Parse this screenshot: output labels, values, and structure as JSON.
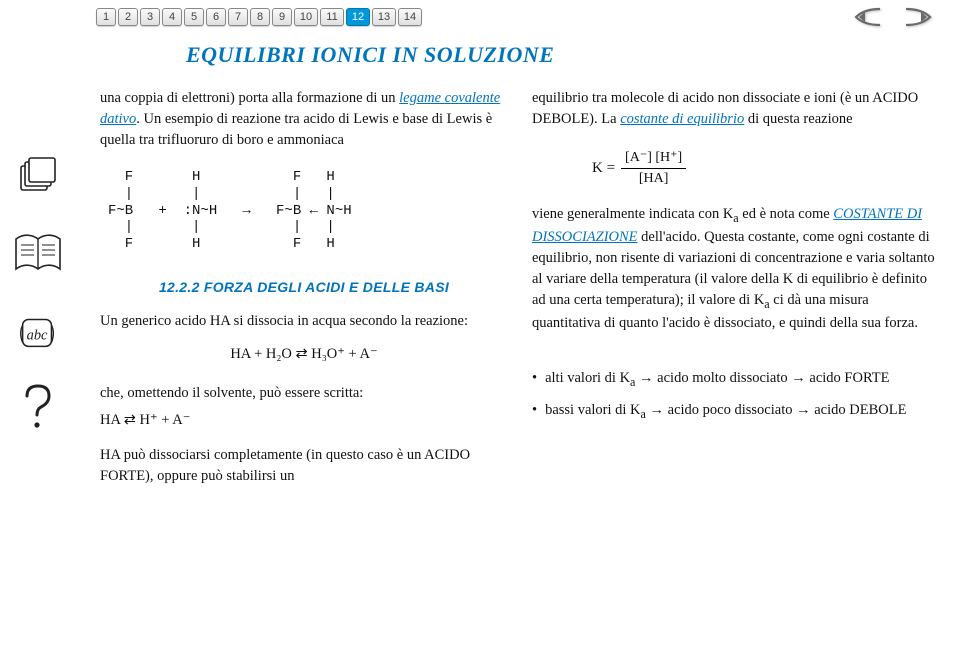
{
  "title": {
    "text": "EQUILIBRI IONICI IN SOLUZIONE",
    "fontsize": 22,
    "color": "#0074bd"
  },
  "pages": {
    "list": [
      "1",
      "2",
      "3",
      "4",
      "5",
      "6",
      "7",
      "8",
      "9",
      "10",
      "11",
      "12",
      "13",
      "14"
    ],
    "active": 12
  },
  "colors": {
    "brand_blue": "#0074bd",
    "page_active": "#0098d8",
    "text": "#111111",
    "arrow": "#5a5a5a"
  },
  "left": {
    "p1a": "una coppia di elettroni) porta alla formazione di un ",
    "p1b": "legame covalente dativo",
    "p1c": ". Un esempio di reazione tra acido di Lewis e base di Lewis è quella tra trifluoruro di boro e ammoniaca",
    "lewis": "  F       H           F   H\n  |       |           |   |\nF~B   +  :N~H   →   F~B ← N~H\n  |       |           |   |\n  F       H           F   H",
    "section": "12.2.2 FORZA DEGLI ACIDI E DELLE BASI",
    "p2": "Un generico acido HA si dissocia in acqua secondo la reazione:",
    "eq1": "HA + H₂O ⇄ H₃O⁺ + A⁻",
    "p3": "che, omettendo il solvente, può essere scritta:",
    "eq2": " HA ⇄ H⁺ + A⁻",
    "p4": "HA può dissociarsi completamente (in questo caso è un ACIDO FORTE), oppure può stabilirsi un"
  },
  "right": {
    "p1a": "equilibrio tra molecole di acido non dissociate e ioni (è un ACIDO DEBOLE). La ",
    "p1b": "costante di equilibrio",
    "p1c": " di questa reazione",
    "K_lhs": "K = ",
    "K_num": "[A⁻] [H⁺]",
    "K_den": "[HA]",
    "p2a": "viene generalmente indicata con K",
    "p2a_sub": "a",
    "p2b": " ed è nota come ",
    "p2c": "COSTANTE DI DISSOCIAZIONE",
    "p2d": " dell'acido. Questa costante, come ogni costante di equilibrio, non risente di variazioni di concentrazione e varia soltanto al variare della temperatura (il valore della K di equilibrio è definito ad una certa temperatura); il valore di K",
    "p2d_sub": "a",
    "p2e": " ci dà una misura quantitativa di quanto l'acido è dissociato, e quindi della sua forza.",
    "b1a": "alti valori di K",
    "b1a_sub": "a",
    "b1b": " → acido  molto dissociato → acido FORTE",
    "b2a": "bassi valori di K",
    "b2a_sub": "a",
    "b2b": " → acido poco dissociato → acido DEBOLE"
  }
}
